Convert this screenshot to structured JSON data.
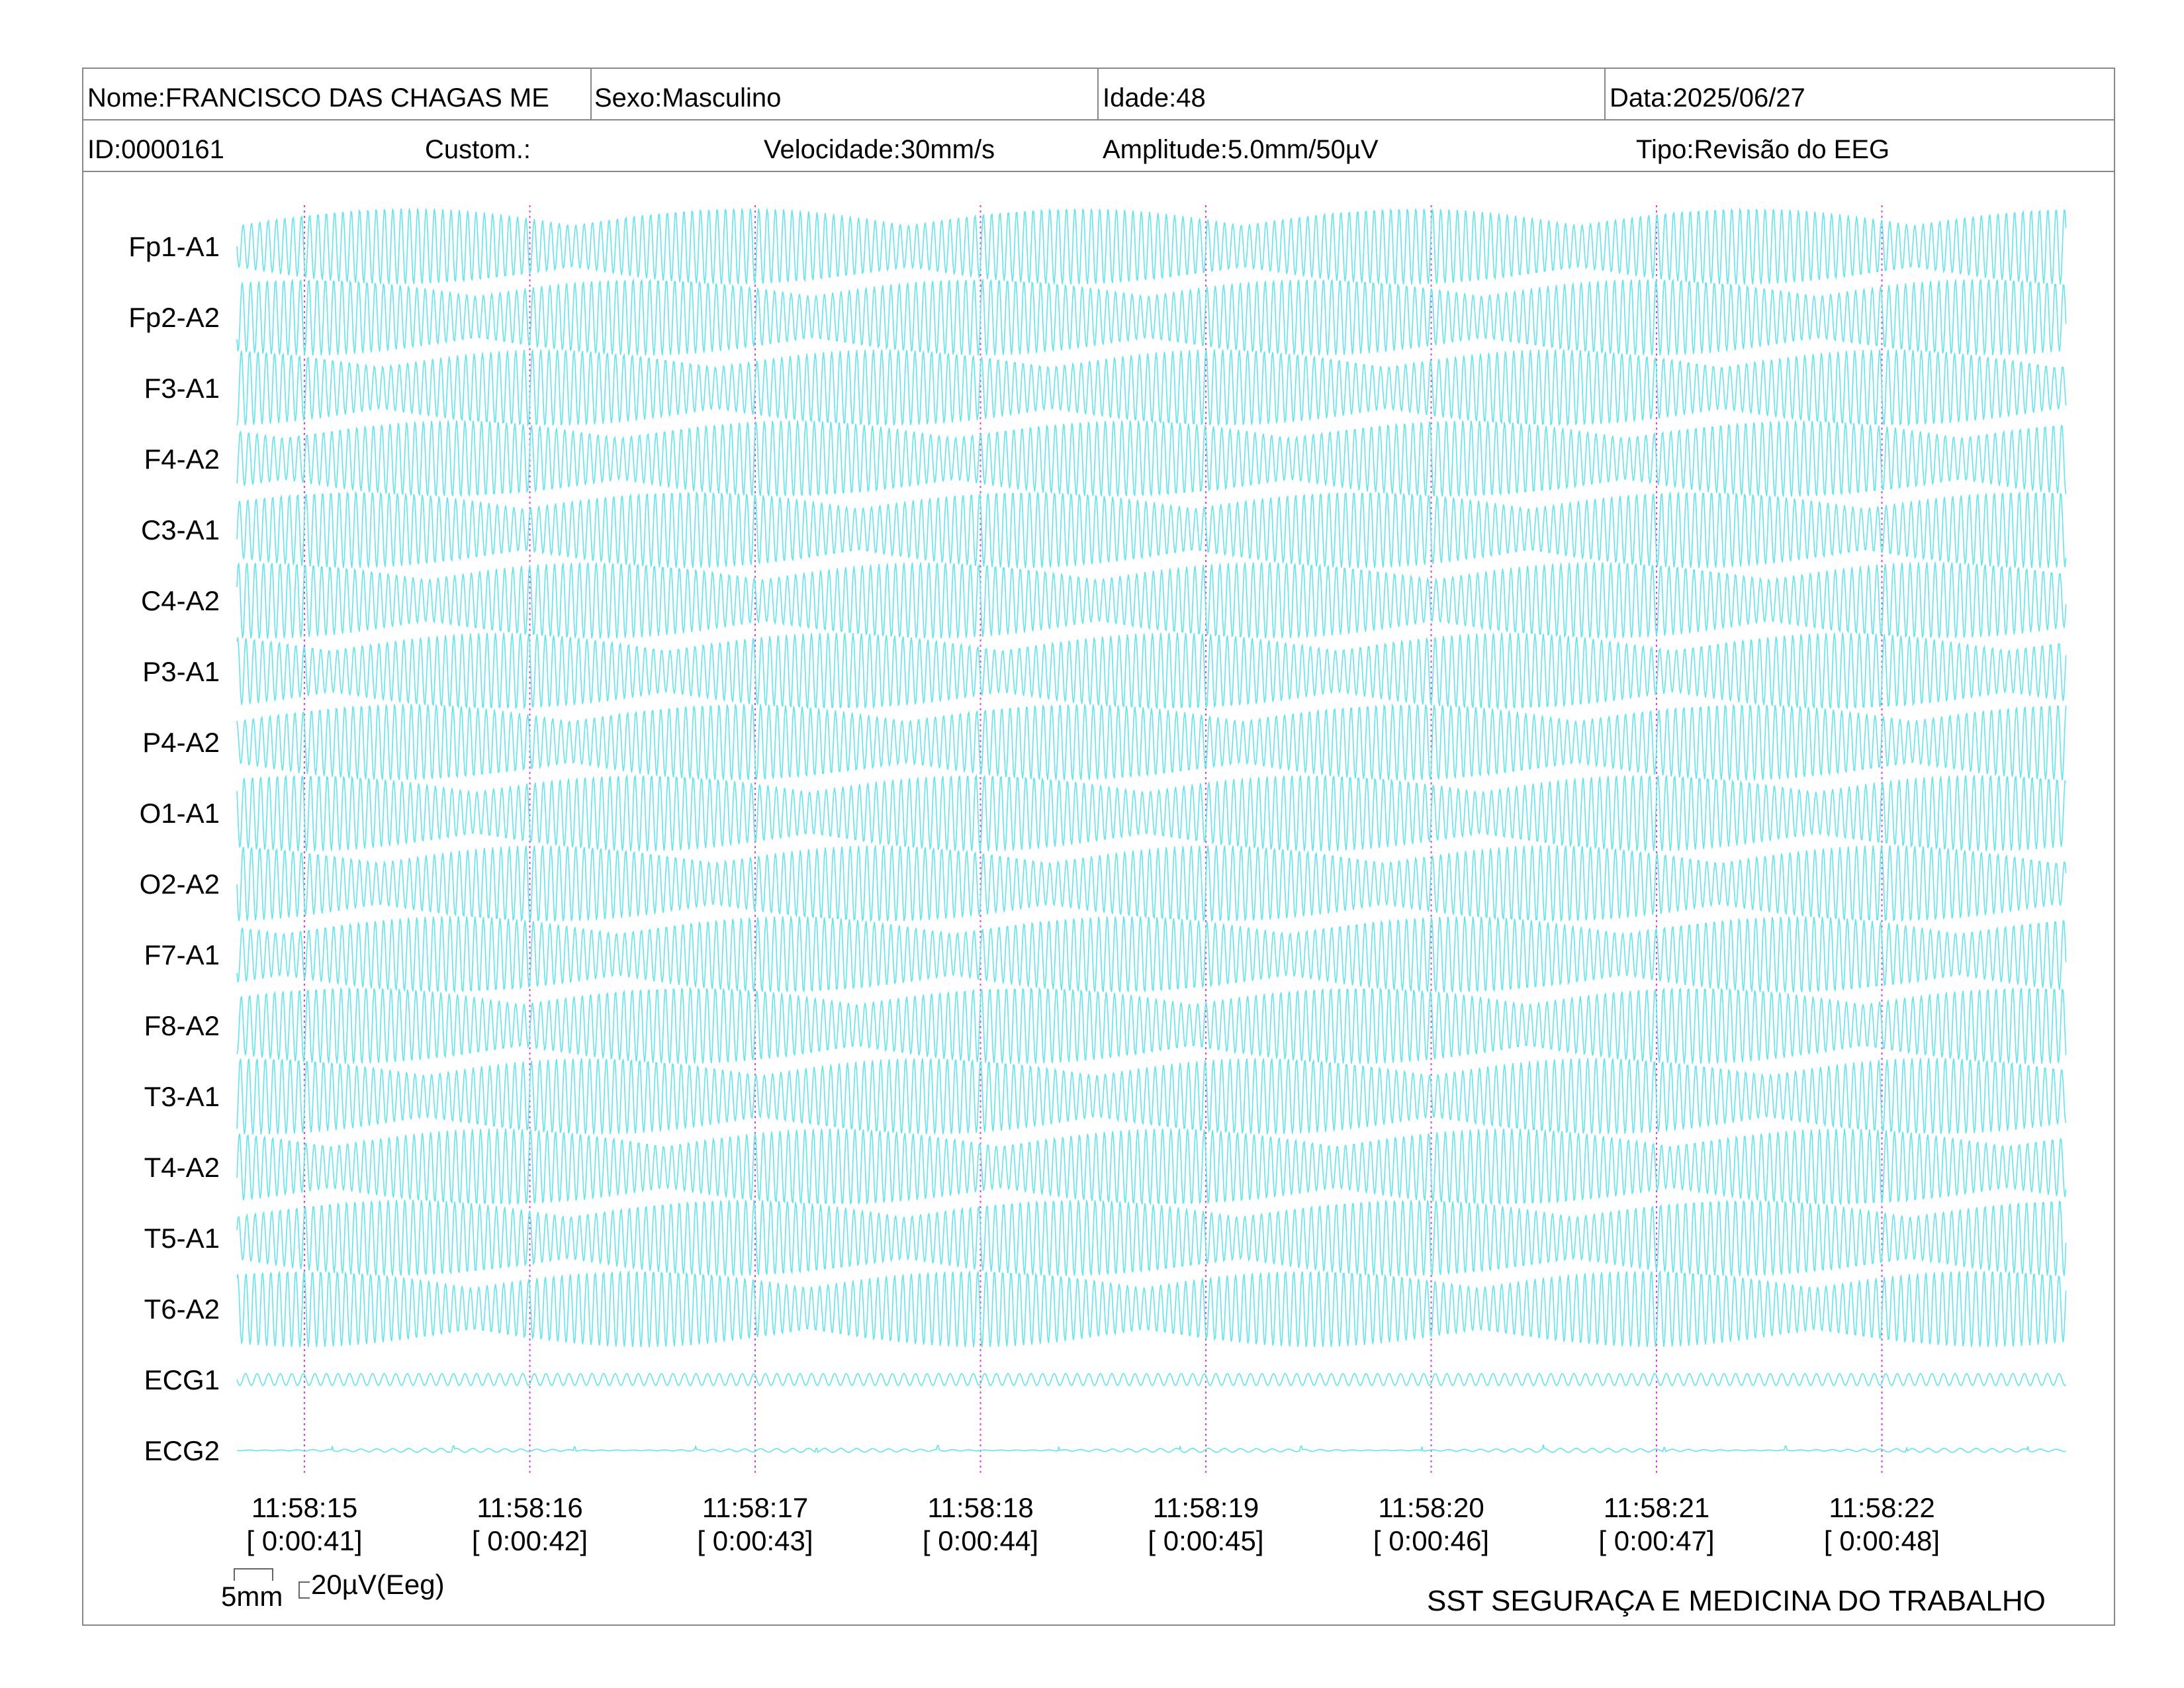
{
  "header": {
    "nome": "Nome:FRANCISCO DAS CHAGAS ME",
    "sexo": "Sexo:Masculino",
    "idade": "Idade:48",
    "data": "Data:2025/06/27",
    "id": "ID:0000161",
    "custom": "Custom.:",
    "velocidade": "Velocidade:30mm/s",
    "amplitude": "Amplitude:5.0mm/50µV",
    "tipo": "Tipo:Revisão do EEG"
  },
  "chart_data": {
    "type": "line",
    "trace_color": "#5ee6ee",
    "marker_color": "#e040e0",
    "channels": [
      "Fp1-A1",
      "Fp2-A2",
      "F3-A1",
      "F4-A2",
      "C3-A1",
      "C4-A2",
      "P3-A1",
      "P4-A2",
      "O1-A1",
      "O2-A2",
      "F7-A1",
      "F8-A2",
      "T3-A1",
      "T4-A2",
      "T5-A1",
      "T6-A2",
      "ECG1",
      "ECG2"
    ],
    "time_markers": [
      {
        "clock": "11:58:15",
        "elapsed": "[ 0:00:41]"
      },
      {
        "clock": "11:58:16",
        "elapsed": "[ 0:00:42]"
      },
      {
        "clock": "11:58:17",
        "elapsed": "[ 0:00:43]"
      },
      {
        "clock": "11:58:18",
        "elapsed": "[ 0:00:44]"
      },
      {
        "clock": "11:58:19",
        "elapsed": "[ 0:00:45]"
      },
      {
        "clock": "11:58:20",
        "elapsed": "[ 0:00:46]"
      },
      {
        "clock": "11:58:21",
        "elapsed": "[ 0:00:47]"
      },
      {
        "clock": "11:58:22",
        "elapsed": "[ 0:00:48]"
      }
    ],
    "speed_mm_s": 30,
    "amplitude_mm_per_50uV": 5.0
  },
  "scale": {
    "time_label": "5mm",
    "amp_label": "20µV(Eeg)"
  },
  "footer": {
    "organization": "SST SEGURAÇA E MEDICINA DO TRABALHO"
  }
}
